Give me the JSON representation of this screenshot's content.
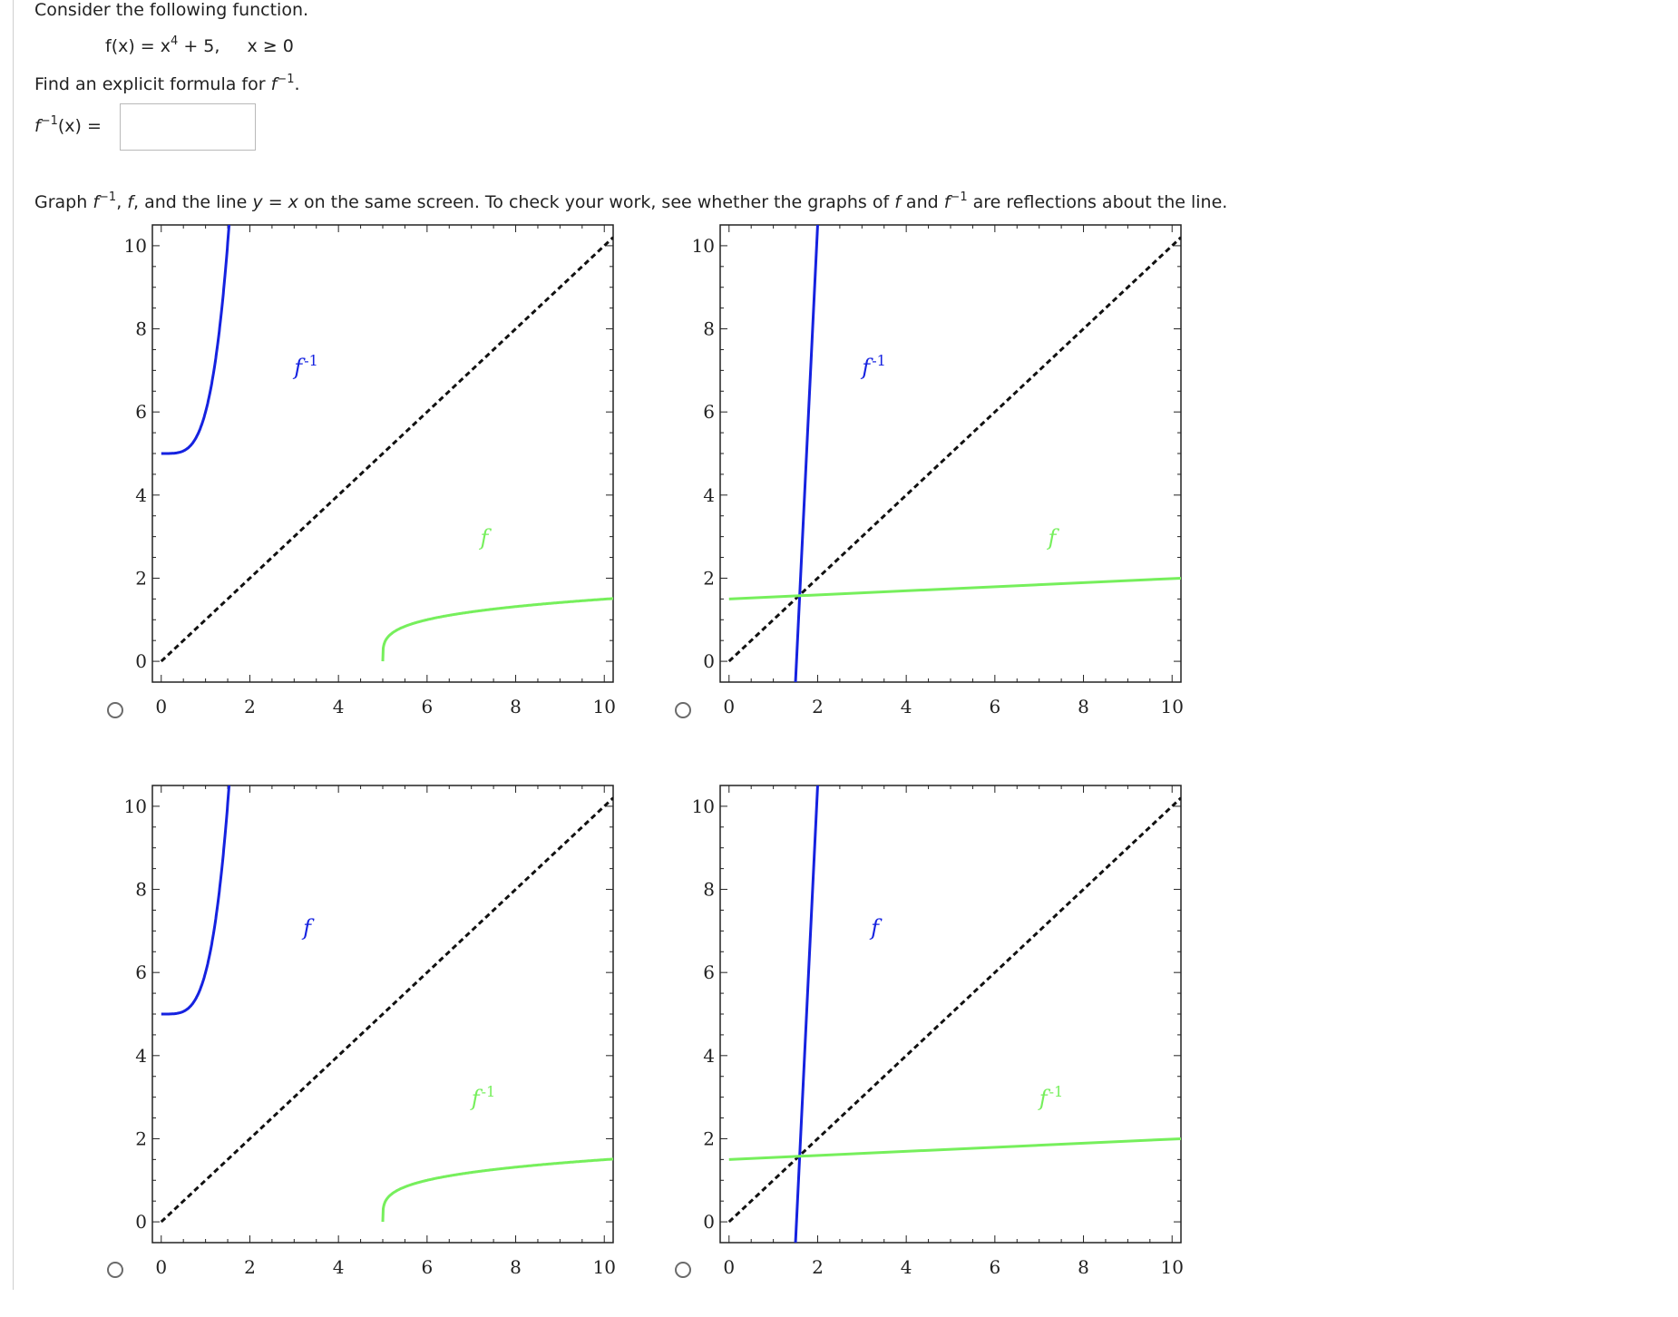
{
  "question": {
    "intro": "Consider the following function.",
    "function": {
      "lhs": "f(x) = x",
      "exponent": "4",
      "rest": " + 5,",
      "domain": "x ≥ 0"
    },
    "find": {
      "text": "Find an explicit formula for ",
      "f": "f",
      "sup": "−1",
      "end": "."
    },
    "answer_label": {
      "f": "f",
      "sup": "−1",
      "rest": "(x) ="
    },
    "answer_value": "",
    "graph_instruction": {
      "p1": "Graph ",
      "f1": "f",
      "s1": "−1",
      "p2": ", ",
      "f2": "f",
      "p3": ", and the line ",
      "y": "y",
      "p4": " = ",
      "x": "x",
      "p5": " on the same screen. To check your work, see whether the graphs of ",
      "f3": "f",
      "p6": " and ",
      "f4": "f",
      "s2": "−1",
      "p7": " are reflections about the line."
    }
  },
  "colors": {
    "blue": "#1522e0",
    "green": "#76ef5c",
    "black": "#111111",
    "frame": "#222222"
  },
  "graphs": [
    {
      "id": "A",
      "selected": false,
      "blue_curve": "x = y^4 + 5 (f with axes swapped)",
      "green_curve": "y = (x - 5)^(1/4)",
      "labels": {
        "blue": {
          "text": "f",
          "sup": "-1",
          "x": 3.0,
          "y": 6.9
        },
        "green": {
          "text": "f",
          "sup": "",
          "x": 7.2,
          "y": 2.8
        }
      }
    },
    {
      "id": "B",
      "selected": false,
      "blue_curve": "steep line",
      "green_curve": "shallow line",
      "labels": {
        "blue": {
          "text": "f",
          "sup": "-1",
          "x": 3.0,
          "y": 6.9
        },
        "green": {
          "text": "f",
          "sup": "",
          "x": 7.2,
          "y": 2.8
        }
      }
    },
    {
      "id": "C",
      "selected": false,
      "blue_curve": "x = y^4 + 5 (f with axes swapped)",
      "green_curve": "y = (x - 5)^(1/4)",
      "labels": {
        "blue": {
          "text": "f",
          "sup": "",
          "x": 3.2,
          "y": 6.9
        },
        "green": {
          "text": "f",
          "sup": "-1",
          "x": 7.0,
          "y": 2.8
        }
      }
    },
    {
      "id": "D",
      "selected": false,
      "blue_curve": "steep line",
      "green_curve": "shallow line",
      "labels": {
        "blue": {
          "text": "f",
          "sup": "",
          "x": 3.2,
          "y": 6.9
        },
        "green": {
          "text": "f",
          "sup": "-1",
          "x": 7.0,
          "y": 2.8
        }
      }
    }
  ],
  "axes": {
    "x_ticks": [
      "0",
      "2",
      "4",
      "6",
      "8",
      "10"
    ],
    "y_ticks": [
      "0",
      "2",
      "4",
      "6",
      "8",
      "10"
    ],
    "xlim": [
      -0.2,
      10.2
    ],
    "ylim": [
      -0.5,
      10.5
    ]
  }
}
